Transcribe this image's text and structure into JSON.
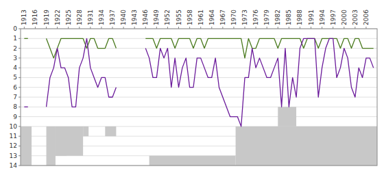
{
  "chart_data": {
    "type": "line",
    "x": [
      1913,
      1914,
      1915,
      1916,
      1917,
      1918,
      1919,
      1920,
      1921,
      1922,
      1923,
      1924,
      1925,
      1926,
      1927,
      1928,
      1929,
      1930,
      1931,
      1932,
      1933,
      1934,
      1935,
      1936,
      1937,
      1938,
      1939,
      1940,
      1941,
      1942,
      1943,
      1944,
      1945,
      1946,
      1947,
      1948,
      1949,
      1950,
      1951,
      1952,
      1953,
      1954,
      1955,
      1956,
      1957,
      1958,
      1959,
      1960,
      1961,
      1962,
      1963,
      1964,
      1965,
      1966,
      1967,
      1968,
      1969,
      1970,
      1971,
      1972,
      1973,
      1974,
      1975,
      1976,
      1977,
      1978,
      1979,
      1980,
      1981,
      1982,
      1983,
      1984,
      1985,
      1986,
      1987,
      1988,
      1989,
      1990,
      1991,
      1992,
      1993,
      1994,
      1995,
      1996,
      1997,
      1998,
      1999,
      2000,
      2001,
      2002,
      2003,
      2004,
      2005,
      2006,
      2007,
      2008
    ],
    "series": [
      {
        "color": "#4a7a1e",
        "values": [
          1,
          1,
          null,
          null,
          null,
          null,
          1,
          2,
          3,
          2,
          1,
          1,
          1,
          1,
          1,
          1,
          1,
          2,
          1,
          1,
          2,
          2,
          2,
          1,
          1,
          2,
          null,
          null,
          null,
          null,
          null,
          null,
          null,
          1,
          1,
          1,
          2,
          1,
          1,
          1,
          1,
          2,
          1,
          1,
          1,
          1,
          2,
          1,
          1,
          2,
          1,
          1,
          1,
          1,
          1,
          1,
          1,
          1,
          1,
          1,
          3,
          1,
          2,
          2,
          1,
          1,
          1,
          1,
          1,
          2,
          1,
          1,
          1,
          1,
          1,
          1,
          2,
          1,
          1,
          1,
          2,
          1,
          1,
          1,
          1,
          1,
          2,
          1,
          1,
          2,
          1,
          1,
          2,
          2,
          2,
          2
        ]
      },
      {
        "color": "#6a1a9a",
        "values": [
          8,
          8,
          null,
          null,
          null,
          null,
          8,
          5,
          4,
          2,
          4,
          4,
          5,
          8,
          8,
          4,
          3,
          1,
          4,
          5,
          6,
          5,
          5,
          7,
          7,
          6,
          null,
          null,
          null,
          null,
          null,
          null,
          null,
          2,
          3,
          5,
          5,
          2,
          3,
          2,
          6,
          3,
          6,
          4,
          3,
          6,
          6,
          3,
          3,
          4,
          5,
          5,
          3,
          6,
          7,
          8,
          9,
          9,
          9,
          10,
          5,
          5,
          2,
          4,
          3,
          4,
          5,
          5,
          4,
          3,
          8,
          2,
          8,
          5,
          7,
          2,
          1,
          1,
          1,
          1,
          7,
          4,
          2,
          1,
          1,
          5,
          4,
          2,
          3,
          6,
          7,
          4,
          5,
          3,
          3,
          4
        ]
      }
    ],
    "bands": {
      "color": "#c8c8c8",
      "ranges": [
        [
          1912.0,
          1915.0,
          10,
          14
        ],
        [
          1919.0,
          1921.5,
          10,
          14
        ],
        [
          1921.5,
          1929.0,
          10,
          13
        ],
        [
          1921.5,
          1924.5,
          12,
          13
        ],
        [
          1929.0,
          1930.5,
          10,
          11
        ],
        [
          1935.0,
          1938.0,
          10,
          11
        ],
        [
          1947.0,
          1970.5,
          13,
          14
        ],
        [
          1970.5,
          2009.0,
          10,
          14
        ],
        [
          1982.0,
          1987.0,
          8,
          10
        ]
      ]
    },
    "xlim": [
      1912.0,
      2009.0
    ],
    "xticks": [
      1913,
      1916,
      1919,
      1922,
      1925,
      1928,
      1931,
      1934,
      1937,
      1940,
      1943,
      1946,
      1949,
      1952,
      1955,
      1958,
      1961,
      1964,
      1967,
      1970,
      1973,
      1976,
      1979,
      1982,
      1985,
      1988,
      1991,
      1994,
      1997,
      2000,
      2003,
      2006
    ],
    "ylim": [
      14,
      0
    ],
    "yticks": [
      0,
      1,
      2,
      3,
      4,
      5,
      6,
      7,
      8,
      9,
      10,
      11,
      12,
      13,
      14
    ],
    "grid": true
  }
}
